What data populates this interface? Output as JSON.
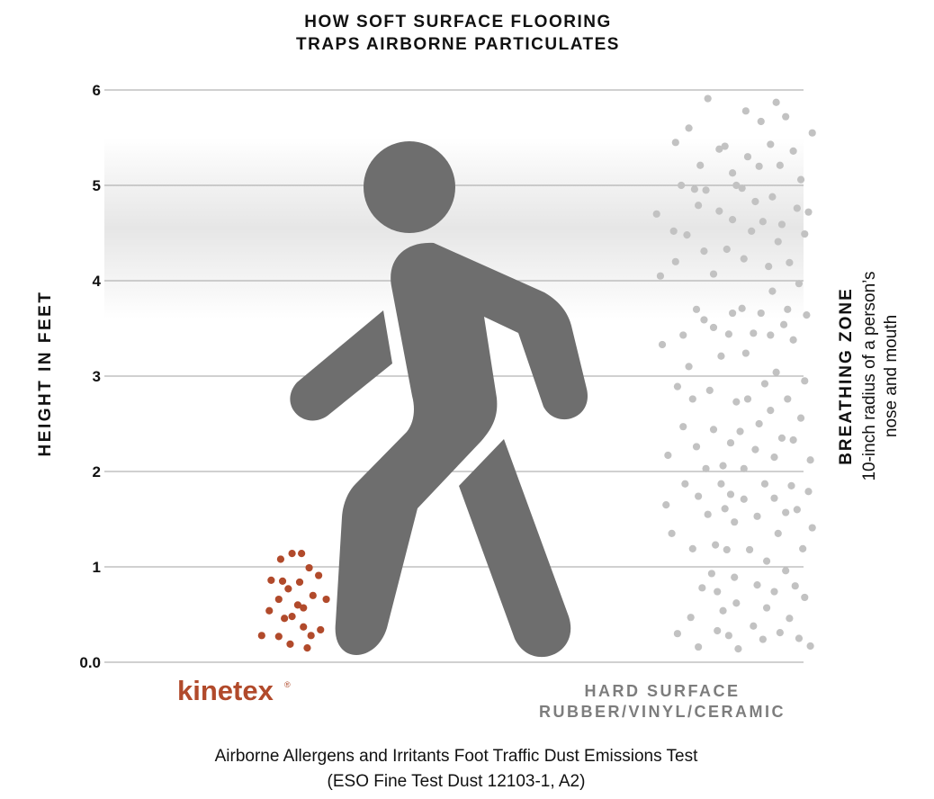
{
  "colors": {
    "kinetex": "#b14a2b",
    "hard_surface": "#c2c2c2",
    "figure": "#6e6e6e",
    "grid": "#b3b3b3",
    "breathing_zone_band": "#e6e6e6"
  },
  "title_lines": [
    "HOW SOFT SURFACE FLOORING",
    "TRAPS AIRBORNE PARTICULATES"
  ],
  "figure_icon": "walking-person-icon",
  "labels": {
    "kinetex": "kinetex",
    "kinetex_mark": "®",
    "hard_surface_line1": "HARD SURFACE",
    "hard_surface_line2": "RUBBER/VINYL/CERAMIC",
    "breathing_zone_title": "BREATHING ZONE",
    "breathing_zone_line1": "10-inch radius of a person’s",
    "breathing_zone_line2": "nose and mouth"
  },
  "caption": {
    "line1": "Airborne Allergens and Irritants Foot Traffic Dust Emissions Test",
    "line2": "(ESO Fine Test Dust 12103-1, A2)"
  },
  "chart_data": {
    "type": "scatter",
    "ylabel": "HEIGHT IN FEET",
    "ylim": [
      0,
      6
    ],
    "yticks": [
      {
        "value": 0,
        "label": "0.0"
      },
      {
        "value": 1,
        "label": "1"
      },
      {
        "value": 2,
        "label": "2"
      },
      {
        "value": 3,
        "label": "3"
      },
      {
        "value": 4,
        "label": "4"
      },
      {
        "value": 5,
        "label": "5"
      },
      {
        "value": 6,
        "label": "6"
      }
    ],
    "grid": true,
    "breathing_zone": {
      "from": 3.6,
      "to": 5.5
    },
    "series": [
      {
        "name": "kinetex",
        "color": "#b14a2b",
        "points": [
          [
            0.62,
            0.28
          ],
          [
            0.66,
            0.54
          ],
          [
            0.67,
            0.86
          ],
          [
            0.71,
            0.27
          ],
          [
            0.71,
            0.66
          ],
          [
            0.72,
            1.08
          ],
          [
            0.73,
            0.85
          ],
          [
            0.74,
            0.46
          ],
          [
            0.76,
            0.77
          ],
          [
            0.77,
            0.19
          ],
          [
            0.78,
            0.48
          ],
          [
            0.78,
            1.14
          ],
          [
            0.81,
            0.6
          ],
          [
            0.82,
            0.84
          ],
          [
            0.83,
            1.14
          ],
          [
            0.84,
            0.57
          ],
          [
            0.84,
            0.37
          ],
          [
            0.86,
            0.15
          ],
          [
            0.87,
            0.99
          ],
          [
            0.88,
            0.28
          ],
          [
            0.89,
            0.7
          ],
          [
            0.92,
            0.91
          ],
          [
            0.93,
            0.34
          ],
          [
            0.96,
            0.66
          ]
        ]
      },
      {
        "name": "HARD SURFACE",
        "color": "#c2c2c2",
        "points": [
          [
            2.7,
            4.7
          ],
          [
            2.72,
            4.05
          ],
          [
            2.73,
            3.33
          ],
          [
            2.75,
            1.65
          ],
          [
            2.76,
            2.17
          ],
          [
            2.78,
            1.35
          ],
          [
            2.79,
            4.52
          ],
          [
            2.8,
            5.45
          ],
          [
            2.8,
            4.2
          ],
          [
            2.81,
            2.89
          ],
          [
            2.81,
            0.3
          ],
          [
            2.83,
            5.0
          ],
          [
            2.84,
            2.47
          ],
          [
            2.84,
            3.43
          ],
          [
            2.85,
            1.87
          ],
          [
            2.86,
            4.48
          ],
          [
            2.87,
            3.1
          ],
          [
            2.87,
            5.6
          ],
          [
            2.88,
            0.47
          ],
          [
            2.89,
            2.76
          ],
          [
            2.89,
            1.19
          ],
          [
            2.9,
            4.96
          ],
          [
            2.91,
            3.7
          ],
          [
            2.91,
            2.26
          ],
          [
            2.92,
            4.79
          ],
          [
            2.92,
            1.74
          ],
          [
            2.92,
            0.16
          ],
          [
            2.93,
            5.21
          ],
          [
            2.94,
            0.78
          ],
          [
            2.95,
            3.59
          ],
          [
            2.95,
            4.31
          ],
          [
            2.96,
            4.95
          ],
          [
            2.96,
            2.03
          ],
          [
            2.97,
            1.55
          ],
          [
            2.97,
            5.91
          ],
          [
            2.98,
            2.85
          ],
          [
            2.99,
            0.93
          ],
          [
            3.0,
            4.07
          ],
          [
            3.0,
            3.51
          ],
          [
            3.0,
            2.44
          ],
          [
            3.01,
            1.23
          ],
          [
            3.02,
            0.33
          ],
          [
            3.02,
            0.74
          ],
          [
            3.03,
            5.38
          ],
          [
            3.03,
            4.73
          ],
          [
            3.04,
            3.21
          ],
          [
            3.04,
            1.87
          ],
          [
            3.05,
            2.06
          ],
          [
            3.05,
            0.54
          ],
          [
            3.06,
            5.41
          ],
          [
            3.06,
            1.61
          ],
          [
            3.07,
            4.33
          ],
          [
            3.07,
            1.18
          ],
          [
            3.08,
            3.44
          ],
          [
            3.08,
            0.28
          ],
          [
            3.09,
            2.3
          ],
          [
            3.09,
            1.76
          ],
          [
            3.1,
            5.13
          ],
          [
            3.1,
            4.64
          ],
          [
            3.1,
            3.66
          ],
          [
            3.11,
            0.89
          ],
          [
            3.11,
            1.47
          ],
          [
            3.12,
            2.73
          ],
          [
            3.12,
            0.62
          ],
          [
            3.12,
            5.0
          ],
          [
            3.13,
            0.14
          ],
          [
            3.14,
            2.42
          ],
          [
            3.15,
            4.97
          ],
          [
            3.15,
            3.71
          ],
          [
            3.16,
            2.03
          ],
          [
            3.16,
            1.71
          ],
          [
            3.16,
            4.23
          ],
          [
            3.17,
            5.78
          ],
          [
            3.17,
            3.24
          ],
          [
            3.18,
            2.76
          ],
          [
            3.18,
            5.3
          ],
          [
            3.19,
            1.18
          ],
          [
            3.2,
            4.52
          ],
          [
            3.21,
            3.45
          ],
          [
            3.21,
            0.38
          ],
          [
            3.22,
            4.83
          ],
          [
            3.22,
            2.23
          ],
          [
            3.23,
            1.53
          ],
          [
            3.23,
            0.81
          ],
          [
            3.24,
            5.2
          ],
          [
            3.24,
            2.5
          ],
          [
            3.25,
            5.67
          ],
          [
            3.25,
            3.66
          ],
          [
            3.26,
            4.62
          ],
          [
            3.26,
            0.24
          ],
          [
            3.27,
            1.87
          ],
          [
            3.27,
            2.92
          ],
          [
            3.28,
            1.06
          ],
          [
            3.28,
            0.57
          ],
          [
            3.29,
            4.15
          ],
          [
            3.3,
            3.43
          ],
          [
            3.3,
            2.64
          ],
          [
            3.3,
            5.43
          ],
          [
            3.31,
            4.88
          ],
          [
            3.31,
            3.89
          ],
          [
            3.32,
            0.74
          ],
          [
            3.32,
            1.72
          ],
          [
            3.32,
            2.15
          ],
          [
            3.33,
            5.87
          ],
          [
            3.33,
            3.04
          ],
          [
            3.34,
            4.41
          ],
          [
            3.34,
            1.35
          ],
          [
            3.35,
            5.21
          ],
          [
            3.35,
            0.31
          ],
          [
            3.36,
            4.59
          ],
          [
            3.36,
            2.35
          ],
          [
            3.37,
            3.54
          ],
          [
            3.38,
            0.96
          ],
          [
            3.38,
            1.57
          ],
          [
            3.38,
            5.72
          ],
          [
            3.39,
            3.7
          ],
          [
            3.39,
            2.76
          ],
          [
            3.4,
            4.19
          ],
          [
            3.4,
            0.46
          ],
          [
            3.41,
            1.85
          ],
          [
            3.42,
            5.36
          ],
          [
            3.42,
            2.33
          ],
          [
            3.42,
            3.38
          ],
          [
            3.43,
            0.8
          ],
          [
            3.44,
            4.76
          ],
          [
            3.44,
            1.6
          ],
          [
            3.45,
            3.97
          ],
          [
            3.45,
            0.25
          ],
          [
            3.46,
            2.56
          ],
          [
            3.46,
            5.06
          ],
          [
            3.47,
            1.19
          ],
          [
            3.48,
            4.49
          ],
          [
            3.48,
            0.68
          ],
          [
            3.48,
            2.95
          ],
          [
            3.49,
            3.64
          ],
          [
            3.5,
            1.79
          ],
          [
            3.5,
            4.72
          ],
          [
            3.51,
            0.17
          ],
          [
            3.51,
            2.12
          ],
          [
            3.52,
            5.55
          ],
          [
            3.52,
            1.41
          ]
        ]
      }
    ]
  }
}
